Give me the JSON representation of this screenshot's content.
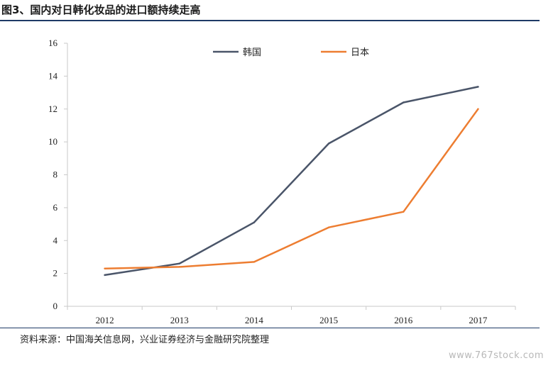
{
  "title": "图3、国内对日韩化妆品的进口额持续走高",
  "source": "资料来源：中国海关信息网，兴业证券经济与金融研究院整理",
  "watermark": "www.767stock.com",
  "chart_data": {
    "type": "line",
    "categories": [
      "2012",
      "2013",
      "2014",
      "2015",
      "2016",
      "2017"
    ],
    "ylim": [
      0,
      16
    ],
    "yticks": [
      0,
      2,
      4,
      6,
      8,
      10,
      12,
      14,
      16
    ],
    "legend_position": "top",
    "grid": false,
    "series": [
      {
        "name": "韩国",
        "color": "#4a5569",
        "values": [
          1.9,
          2.6,
          5.1,
          9.9,
          12.4,
          13.35
        ]
      },
      {
        "name": "日本",
        "color": "#ed7d31",
        "values": [
          2.3,
          2.4,
          2.7,
          4.8,
          5.75,
          12.0
        ]
      }
    ]
  }
}
